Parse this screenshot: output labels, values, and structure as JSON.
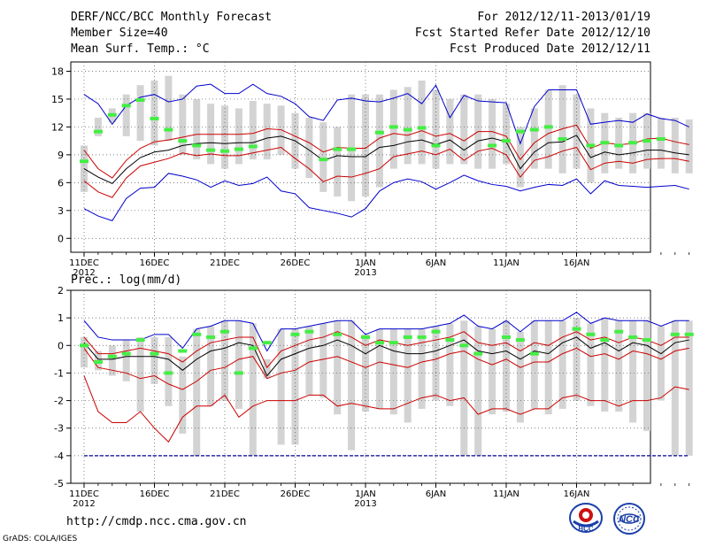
{
  "header": {
    "title": "DERF/NCC/BCC Monthly Forecast",
    "member_size": "Member Size=40",
    "variable1": "Mean Surf. Temp.: °C",
    "period": "For 2012/12/11-2013/01/19",
    "refer_date": "Fcst Started Refer Date 2012/12/10",
    "produced_date": "Fcst Produced Date 2012/12/11"
  },
  "footer": {
    "url": "http://cmdp.ncc.cma.gov.cn",
    "grads": "GrADS: COLA/IGES",
    "logo1": "BCC",
    "logo2": "NCC"
  },
  "colors": {
    "bar": "#d3d3d3",
    "median": "#000000",
    "spread": "#cc0000",
    "extreme": "#0000cc",
    "obs": "#44ee44",
    "grid": "#555555",
    "floor": "#000099"
  },
  "chart_data": [
    {
      "type": "line",
      "title": "Mean Surf. Temp.: °C",
      "x_tick_labels": [
        "11DEC",
        "16DEC",
        "21DEC",
        "26DEC",
        "1JAN",
        "6JAN",
        "11JAN",
        "16JAN"
      ],
      "x_tick_sublabels": [
        "2012",
        "",
        "",
        "",
        "2013",
        "",
        "",
        ""
      ],
      "ylim": [
        -1.5,
        19
      ],
      "yticks": [
        0,
        3,
        6,
        9,
        12,
        15,
        18
      ],
      "series": [
        {
          "name": "median",
          "values": [
            7.5,
            6.6,
            5.9,
            7.5,
            8.7,
            9.3,
            9.5,
            10.0,
            10.2,
            10.3,
            10.2,
            10.3,
            10.3,
            10.8,
            11.0,
            10.5,
            9.5,
            8.4,
            8.9,
            8.8,
            8.8,
            9.8,
            10.0,
            10.4,
            10.6,
            10.1,
            10.6,
            9.5,
            10.5,
            10.8,
            10.4,
            7.5,
            9.3,
            10.3,
            10.4,
            11.1,
            8.7,
            9.3,
            9.0,
            9.2,
            9.5,
            9.5,
            9.2,
            9.0
          ]
        },
        {
          "name": "upper_spread",
          "values": [
            9.5,
            7.5,
            6.5,
            8.4,
            9.7,
            10.4,
            10.6,
            10.9,
            11.2,
            11.2,
            11.2,
            11.2,
            11.3,
            11.8,
            11.7,
            11.0,
            10.3,
            9.3,
            9.8,
            9.7,
            9.7,
            10.8,
            11.3,
            11.1,
            11.6,
            11.0,
            11.3,
            10.5,
            11.5,
            11.5,
            11.0,
            8.5,
            10.3,
            11.3,
            11.8,
            12.2,
            9.7,
            10.3,
            10.1,
            10.2,
            10.7,
            10.8,
            10.4,
            10.1
          ]
        },
        {
          "name": "lower_spread",
          "values": [
            6.2,
            5.0,
            4.4,
            6.5,
            7.8,
            8.2,
            8.6,
            9.2,
            8.9,
            9.1,
            8.9,
            8.9,
            9.2,
            9.5,
            9.8,
            8.6,
            7.5,
            6.1,
            6.7,
            6.6,
            7.0,
            7.5,
            8.8,
            9.1,
            9.4,
            9.0,
            9.6,
            8.4,
            9.4,
            9.7,
            9.0,
            6.6,
            8.4,
            8.8,
            9.4,
            9.8,
            7.4,
            8.1,
            8.3,
            8.1,
            8.5,
            8.6,
            8.6,
            8.3
          ]
        },
        {
          "name": "max",
          "values": [
            15.5,
            14.5,
            12.3,
            14.3,
            15.2,
            15.5,
            14.7,
            15.0,
            16.4,
            16.6,
            15.6,
            15.6,
            16.6,
            15.6,
            15.3,
            14.5,
            13.1,
            12.7,
            14.9,
            15.1,
            14.8,
            14.7,
            15.1,
            15.6,
            14.5,
            16.5,
            13.0,
            15.4,
            14.8,
            14.7,
            14.6,
            10.2,
            14.2,
            16.0,
            16.0,
            16.0,
            12.3,
            12.5,
            12.7,
            12.5,
            13.4,
            12.9,
            12.7,
            12.0
          ]
        },
        {
          "name": "min",
          "values": [
            3.2,
            2.4,
            1.9,
            4.3,
            5.4,
            5.5,
            7.0,
            6.7,
            6.3,
            5.5,
            6.2,
            5.7,
            5.9,
            6.6,
            5.1,
            4.8,
            3.3,
            3.0,
            2.7,
            2.3,
            3.2,
            5.1,
            6.0,
            6.4,
            6.1,
            5.3,
            6.0,
            6.8,
            6.2,
            5.8,
            5.6,
            5.1,
            5.5,
            5.8,
            5.7,
            6.4,
            4.8,
            6.2,
            5.7,
            5.6,
            5.5,
            5.6,
            5.7,
            5.3
          ]
        },
        {
          "name": "bar_top",
          "values": [
            10.0,
            13.0,
            14.0,
            15.5,
            16.5,
            17.0,
            17.5,
            15.5,
            15.0,
            14.5,
            14.3,
            14.0,
            14.8,
            14.5,
            14.3,
            13.5,
            13.0,
            12.5,
            12.0,
            15.5,
            15.5,
            15.5,
            16.0,
            16.3,
            17.0,
            16.0,
            15.0,
            15.5,
            15.5,
            15.0,
            14.5,
            12.0,
            14.0,
            16.0,
            16.5,
            15.5,
            14.0,
            13.5,
            13.0,
            13.5,
            13.5,
            13.0,
            13.0,
            12.8
          ]
        },
        {
          "name": "bar_bottom",
          "values": [
            5.0,
            11.0,
            12.5,
            11.0,
            10.5,
            10.0,
            10.5,
            9.0,
            8.5,
            8.0,
            7.5,
            8.0,
            8.5,
            8.5,
            9.0,
            7.5,
            6.5,
            5.0,
            4.5,
            4.0,
            4.5,
            5.5,
            7.5,
            8.0,
            8.0,
            7.5,
            8.0,
            8.0,
            7.5,
            7.5,
            8.0,
            5.5,
            7.5,
            7.5,
            7.0,
            7.5,
            6.0,
            7.0,
            7.5,
            7.0,
            7.5,
            7.5,
            7.0,
            7.0
          ]
        },
        {
          "name": "observed",
          "values": [
            8.3,
            11.5,
            13.3,
            14.3,
            14.9,
            12.9,
            11.7,
            10.5,
            10.0,
            9.5,
            9.4,
            9.6,
            9.9,
            null,
            null,
            null,
            null,
            8.5,
            9.6,
            9.6,
            null,
            11.4,
            12.0,
            11.7,
            11.9,
            10.0,
            null,
            null,
            null,
            10.0,
            10.5,
            11.5,
            11.7,
            12.0,
            10.7,
            null,
            10.0,
            10.3,
            10.0,
            10.3,
            10.5,
            10.7,
            null,
            null
          ]
        }
      ]
    },
    {
      "type": "line",
      "title": "Prec.: log(mm/d)",
      "x_tick_labels": [
        "11DEC",
        "16DEC",
        "21DEC",
        "26DEC",
        "1JAN",
        "6JAN",
        "11JAN",
        "16JAN"
      ],
      "x_tick_sublabels": [
        "2012",
        "",
        "",
        "",
        "2013",
        "",
        "",
        ""
      ],
      "ylim": [
        -5,
        2
      ],
      "yticks": [
        -5,
        -4,
        -3,
        -2,
        -1,
        0,
        1,
        2
      ],
      "floor_value": -4,
      "series": [
        {
          "name": "median",
          "values": [
            0.1,
            -0.5,
            -0.5,
            -0.4,
            -0.4,
            -0.4,
            -0.5,
            -0.9,
            -0.5,
            -0.2,
            -0.1,
            0.1,
            0.0,
            -1.1,
            -0.5,
            -0.3,
            -0.1,
            0.0,
            0.2,
            0.0,
            -0.3,
            0.0,
            -0.2,
            -0.3,
            -0.3,
            -0.2,
            0.0,
            0.2,
            -0.2,
            -0.3,
            -0.2,
            -0.5,
            -0.2,
            -0.3,
            0.1,
            0.3,
            -0.1,
            0.1,
            -0.2,
            0.1,
            0.0,
            -0.3,
            0.1,
            0.2
          ]
        },
        {
          "name": "upper_spread",
          "values": [
            0.3,
            -0.3,
            -0.3,
            -0.2,
            -0.1,
            -0.2,
            -0.3,
            -0.6,
            -0.2,
            0.1,
            0.2,
            0.3,
            0.3,
            -0.8,
            -0.2,
            0.0,
            0.2,
            0.3,
            0.5,
            0.3,
            0.0,
            0.2,
            0.1,
            0.0,
            0.1,
            0.2,
            0.3,
            0.5,
            0.1,
            0.0,
            0.1,
            -0.2,
            0.1,
            0.0,
            0.3,
            0.5,
            0.2,
            0.3,
            0.1,
            0.3,
            0.2,
            0.0,
            0.3,
            0.3
          ]
        },
        {
          "name": "lower_spread",
          "values": [
            -0.1,
            -0.8,
            -0.9,
            -1.0,
            -1.2,
            -1.1,
            -1.4,
            -1.6,
            -1.3,
            -0.9,
            -0.8,
            -0.5,
            -0.4,
            -1.2,
            -1.0,
            -0.9,
            -0.6,
            -0.5,
            -0.4,
            -0.6,
            -0.8,
            -0.6,
            -0.7,
            -0.8,
            -0.6,
            -0.5,
            -0.3,
            -0.2,
            -0.5,
            -0.7,
            -0.5,
            -0.8,
            -0.6,
            -0.6,
            -0.3,
            -0.1,
            -0.4,
            -0.3,
            -0.5,
            -0.2,
            -0.3,
            -0.5,
            -0.2,
            -0.1
          ]
        },
        {
          "name": "max",
          "values": [
            0.9,
            0.3,
            0.2,
            0.2,
            0.2,
            0.4,
            0.4,
            -0.1,
            0.6,
            0.7,
            0.9,
            0.9,
            0.8,
            -0.2,
            0.6,
            0.6,
            0.7,
            0.8,
            0.9,
            0.9,
            0.4,
            0.6,
            0.6,
            0.6,
            0.6,
            0.7,
            0.8,
            1.1,
            0.7,
            0.6,
            0.9,
            0.5,
            0.9,
            0.9,
            0.9,
            1.2,
            0.8,
            1.0,
            0.9,
            0.9,
            0.9,
            0.7,
            0.9,
            0.9
          ]
        },
        {
          "name": "min",
          "values": [
            -1.1,
            -2.4,
            -2.8,
            -2.8,
            -2.4,
            -3.0,
            -3.5,
            -2.6,
            -2.2,
            -2.2,
            -1.8,
            -2.6,
            -2.2,
            -2.0,
            -2.0,
            -2.0,
            -1.8,
            -1.8,
            -2.2,
            -2.1,
            -2.2,
            -2.3,
            -2.3,
            -2.1,
            -1.9,
            -1.8,
            -2.0,
            -1.9,
            -2.5,
            -2.3,
            -2.3,
            -2.5,
            -2.3,
            -2.3,
            -1.9,
            -1.8,
            -2.0,
            -2.0,
            -2.2,
            -2.0,
            -2.0,
            -1.9,
            -1.5,
            -1.6
          ]
        },
        {
          "name": "bar_top",
          "values": [
            0.3,
            -0.2,
            0.0,
            0.2,
            0.3,
            0.3,
            0.3,
            -0.4,
            0.6,
            0.7,
            0.9,
            0.9,
            0.8,
            -0.5,
            0.6,
            0.6,
            0.7,
            0.8,
            0.9,
            0.9,
            0.4,
            0.6,
            0.6,
            0.6,
            0.6,
            0.7,
            0.8,
            0.9,
            0.7,
            0.6,
            0.9,
            0.5,
            0.9,
            0.9,
            0.9,
            1.0,
            0.8,
            1.0,
            0.9,
            0.9,
            0.9,
            0.7,
            0.9,
            0.9
          ]
        },
        {
          "name": "bar_bottom",
          "values": [
            -0.8,
            -0.9,
            -1.1,
            -1.3,
            -2.4,
            -1.4,
            -2.2,
            -3.2,
            -4.0,
            -2.2,
            -2.0,
            -2.3,
            -4.0,
            -1.2,
            -3.6,
            -3.6,
            -1.8,
            -1.9,
            -2.5,
            -3.8,
            -2.4,
            -2.3,
            -2.5,
            -2.8,
            -2.3,
            -2.0,
            -2.2,
            -4.0,
            -4.0,
            -2.5,
            -2.4,
            -2.8,
            -2.3,
            -2.5,
            -2.3,
            -2.0,
            -2.2,
            -2.4,
            -2.4,
            -2.8,
            -3.1,
            -2.0,
            -4.0,
            -4.0
          ]
        },
        {
          "name": "observed",
          "values": [
            0.0,
            -0.6,
            -0.4,
            -0.3,
            0.2,
            -0.3,
            -1.0,
            -0.2,
            0.4,
            0.3,
            0.5,
            -1.0,
            -0.1,
            0.1,
            null,
            0.4,
            0.5,
            null,
            0.4,
            null,
            0.3,
            0.1,
            0.1,
            0.3,
            0.3,
            0.5,
            0.2,
            0.0,
            -0.3,
            null,
            0.3,
            0.2,
            -0.3,
            null,
            null,
            0.6,
            0.4,
            0.2,
            0.5,
            0.3,
            0.2,
            null,
            0.4,
            0.4
          ]
        }
      ]
    }
  ]
}
